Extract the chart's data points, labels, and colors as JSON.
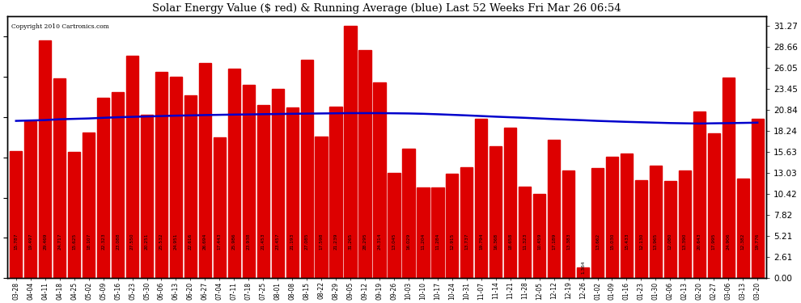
{
  "title": "Solar Energy Value ($ red) & Running Average (blue) Last 52 Weeks Fri Mar 26 06:54",
  "copyright": "Copyright 2010 Cartronics.com",
  "bar_color": "#DD0000",
  "line_color": "#0000CC",
  "background_color": "#ffffff",
  "yticks_right": [
    0.0,
    2.61,
    5.21,
    7.82,
    10.42,
    13.03,
    15.63,
    18.24,
    20.84,
    23.45,
    26.05,
    28.66,
    31.27
  ],
  "ylim": [
    0,
    32.5
  ],
  "categories": [
    "03-28",
    "04-04",
    "04-11",
    "04-18",
    "04-25",
    "05-02",
    "05-09",
    "05-16",
    "05-23",
    "05-30",
    "06-06",
    "06-13",
    "06-20",
    "06-27",
    "07-04",
    "07-11",
    "07-18",
    "07-25",
    "08-01",
    "08-08",
    "08-15",
    "08-22",
    "08-29",
    "09-05",
    "09-12",
    "09-19",
    "09-26",
    "10-03",
    "10-10",
    "10-17",
    "10-24",
    "10-31",
    "11-07",
    "11-14",
    "11-21",
    "11-28",
    "12-05",
    "12-12",
    "12-19",
    "12-26",
    "01-02",
    "01-09",
    "01-16",
    "01-23",
    "01-30",
    "02-06",
    "02-13",
    "02-20",
    "02-27",
    "03-06",
    "03-13",
    "03-20"
  ],
  "bar_vals": [
    15.787,
    19.497,
    29.469,
    24.717,
    15.625,
    18.107,
    22.323,
    23.088,
    27.55,
    20.251,
    25.532,
    24.951,
    22.616,
    26.694,
    17.443,
    25.986,
    23.938,
    21.453,
    23.457,
    21.193,
    27.085,
    17.598,
    21.239,
    31.265,
    28.295,
    24.314,
    13.045,
    16.029,
    11.204,
    11.284,
    12.915,
    13.737,
    19.794,
    16.368,
    18.658,
    11.323,
    10.459,
    17.189,
    13.383,
    1.364,
    13.662,
    15.03,
    15.433,
    12.13,
    13.965,
    12.08,
    13.39,
    20.643,
    17.995,
    24.906,
    12.382,
    19.776
  ],
  "running_avg": [
    19.5,
    19.55,
    19.6,
    19.7,
    19.75,
    19.8,
    19.88,
    19.95,
    20.0,
    20.05,
    20.1,
    20.15,
    20.18,
    20.22,
    20.25,
    20.28,
    20.3,
    20.33,
    20.35,
    20.38,
    20.4,
    20.42,
    20.44,
    20.46,
    20.46,
    20.46,
    20.44,
    20.42,
    20.38,
    20.32,
    20.25,
    20.18,
    20.1,
    20.02,
    19.95,
    19.88,
    19.8,
    19.72,
    19.65,
    19.58,
    19.5,
    19.44,
    19.38,
    19.33,
    19.28,
    19.23,
    19.2,
    19.17,
    19.2,
    19.22,
    19.25,
    19.28
  ]
}
